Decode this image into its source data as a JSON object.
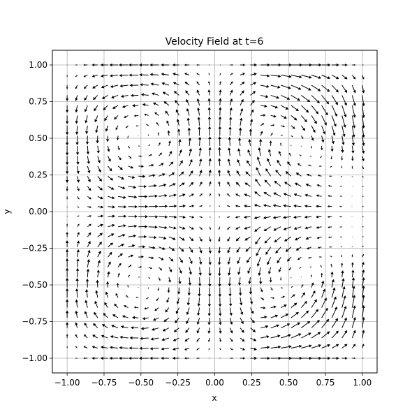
{
  "chart_data": {
    "type": "quiver",
    "title": "Velocity Field at t=6",
    "xlabel": "x",
    "ylabel": "y",
    "xlim": [
      -1.1,
      1.1
    ],
    "ylim": [
      -1.1,
      1.1
    ],
    "x_ticks": [
      -1.0,
      -0.75,
      -0.5,
      -0.25,
      0.0,
      0.25,
      0.5,
      0.75,
      1.0
    ],
    "y_ticks": [
      -1.0,
      -0.75,
      -0.5,
      -0.25,
      0.0,
      0.25,
      0.5,
      0.75,
      1.0
    ],
    "x_tick_labels": [
      "−1.00",
      "−0.75",
      "−0.50",
      "−0.25",
      "0.00",
      "0.25",
      "0.50",
      "0.75",
      "1.00"
    ],
    "y_tick_labels": [
      "−1.00",
      "−0.75",
      "−0.50",
      "−0.25",
      "0.00",
      "0.25",
      "0.50",
      "0.75",
      "1.00"
    ],
    "grid": true,
    "arrow_color": "#000000",
    "grid_color": "#b0b0b0",
    "grid_points_per_axis": 30,
    "field_description_cells": 4,
    "cell_size": 0.5,
    "field_peak_speed": 1.0
  }
}
